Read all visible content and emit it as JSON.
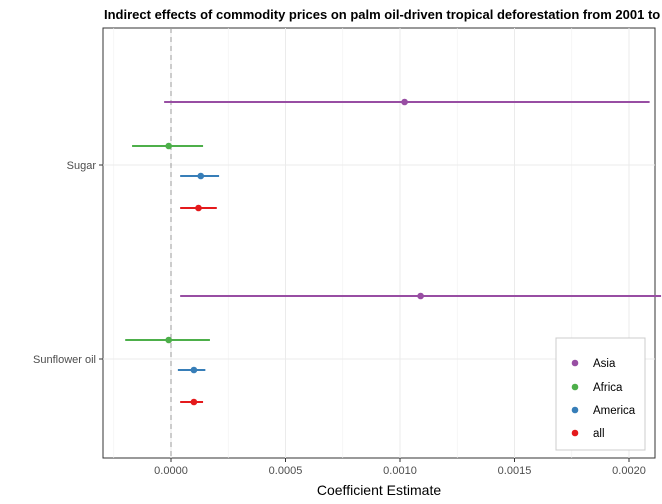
{
  "chart_data": {
    "type": "errorbar-dotplot",
    "title": "Indirect effects of commodity prices on palm oil-driven tropical deforestation from 2001 to",
    "xlabel": "Coefficient Estimate",
    "ylabel": "",
    "xlim": [
      -0.00015,
      0.00222
    ],
    "x_ticks": [
      "0.0000",
      "0.0005",
      "0.0010",
      "0.0015",
      "0.0020"
    ],
    "x_tick_values": [
      0,
      0.0005,
      0.001,
      0.0015,
      0.002
    ],
    "categories": [
      "Sugar",
      "Sunflower oil"
    ],
    "grid": true,
    "reference_line": 0,
    "legend_position": "bottom-right",
    "series": [
      {
        "name": "Asia",
        "color": "#984EA3",
        "points": [
          {
            "category": "Sugar",
            "estimate": 0.00102,
            "low": -3e-05,
            "high": 0.00209
          },
          {
            "category": "Sunflower oil",
            "estimate": 0.00109,
            "low": 4e-05,
            "high": 0.00214
          }
        ]
      },
      {
        "name": "Africa",
        "color": "#4DAF4A",
        "points": [
          {
            "category": "Sugar",
            "estimate": -1e-05,
            "low": -0.00017,
            "high": 0.00014
          },
          {
            "category": "Sunflower oil",
            "estimate": -1e-05,
            "low": -0.0002,
            "high": 0.00017
          }
        ]
      },
      {
        "name": "America",
        "color": "#377EB8",
        "points": [
          {
            "category": "Sugar",
            "estimate": 0.00013,
            "low": 4e-05,
            "high": 0.00021
          },
          {
            "category": "Sunflower oil",
            "estimate": 0.0001,
            "low": 3e-05,
            "high": 0.00015
          }
        ]
      },
      {
        "name": "all",
        "color": "#E41A1C",
        "points": [
          {
            "category": "Sugar",
            "estimate": 0.00012,
            "low": 4e-05,
            "high": 0.0002
          },
          {
            "category": "Sunflower oil",
            "estimate": 0.0001,
            "low": 4e-05,
            "high": 0.00014
          }
        ]
      }
    ]
  }
}
